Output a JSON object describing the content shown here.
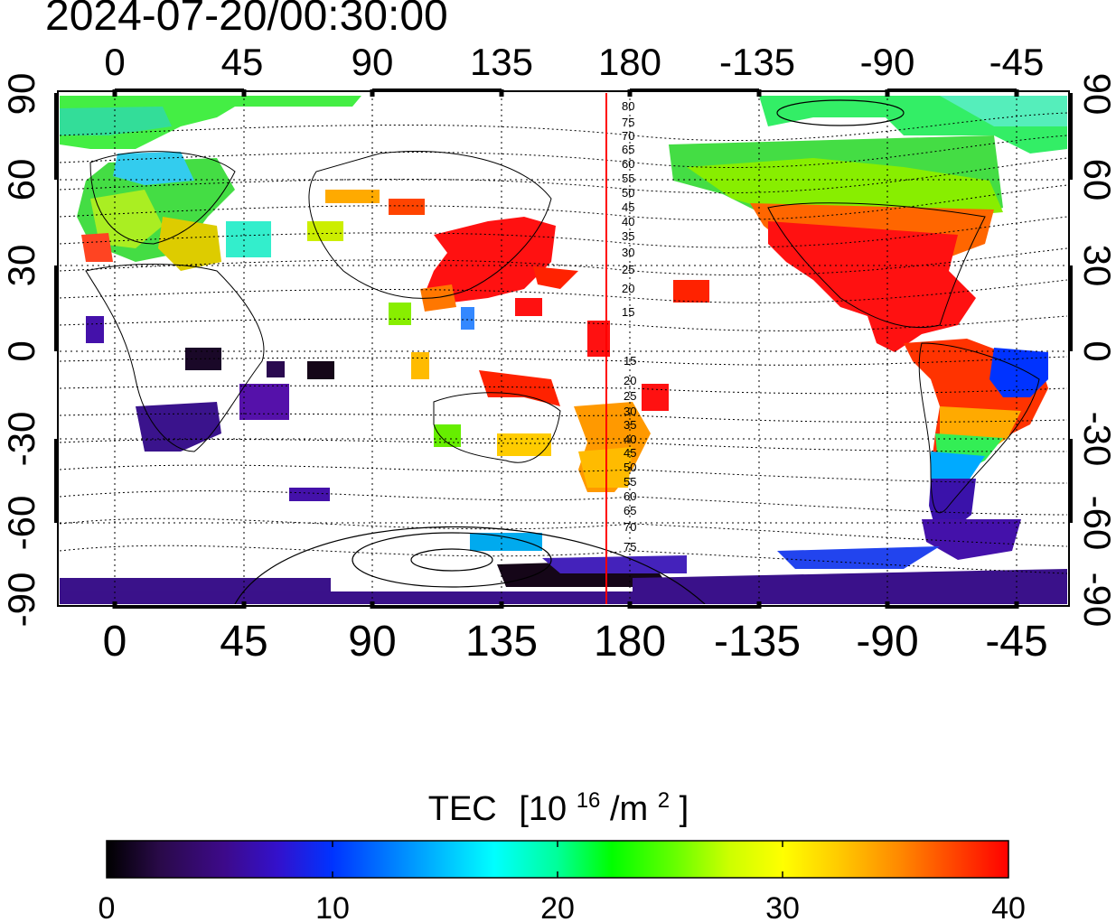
{
  "title": "2024-07-20/00:30:00",
  "map": {
    "top_lon_labels": [
      "0",
      "45",
      "90",
      "135",
      "180",
      "-135",
      "-90",
      "-45"
    ],
    "bottom_lon_labels": [
      "0",
      "45",
      "90",
      "135",
      "180",
      "-135",
      "-90",
      "-45"
    ],
    "left_lat_labels": [
      "90",
      "60",
      "30",
      "0",
      "-30",
      "-60",
      "-90"
    ],
    "right_lat_labels": [
      "90",
      "60",
      "30",
      "0",
      "-30",
      "-60",
      "-90"
    ],
    "contour_labels_north": [
      "80",
      "75",
      "70",
      "65",
      "60",
      "55",
      "50",
      "45",
      "40",
      "35",
      "30",
      "25",
      "20",
      "15"
    ],
    "contour_labels_south": [
      "15",
      "20",
      "25",
      "30",
      "35",
      "40",
      "45",
      "50",
      "55",
      "60",
      "65",
      "70",
      "75"
    ],
    "terminator_color": "#ff0000"
  },
  "colorbar": {
    "title": "TEC",
    "unit_prefix": "[10",
    "unit_exp": "16",
    "unit_mid": "/m",
    "unit_exp2": "2",
    "unit_suffix": "]",
    "ticks": [
      "0",
      "10",
      "20",
      "30",
      "40"
    ],
    "min": 0,
    "max": 40,
    "colors": [
      "#000000",
      "#2a0a4a",
      "#3d0a8a",
      "#3311cc",
      "#0033ff",
      "#0077ff",
      "#00bbff",
      "#00ffff",
      "#00ff99",
      "#00ff00",
      "#66ff00",
      "#ccff00",
      "#ffff00",
      "#ffcc00",
      "#ff8800",
      "#ff4400",
      "#ff0000"
    ]
  }
}
